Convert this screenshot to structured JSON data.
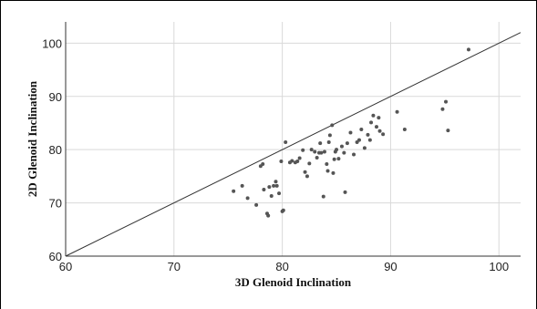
{
  "chart_data": {
    "type": "scatter",
    "title": "",
    "xlabel": "3D Glenoid Inclination",
    "ylabel": "2D Glenoid Inclination",
    "xlim": [
      60,
      102
    ],
    "ylim": [
      60,
      104
    ],
    "x_ticks": [
      60,
      70,
      80,
      90,
      100
    ],
    "y_ticks": [
      60,
      70,
      80,
      90,
      100
    ],
    "grid": true,
    "legend": "none",
    "reference_line": "y = x",
    "colors": {
      "points": "#555555",
      "grid": "#d9d9d9",
      "axis": "#333333",
      "reference_line": "#333333"
    },
    "series": [
      {
        "points": [
          [
            75.5,
            72.2
          ],
          [
            76.3,
            73.2
          ],
          [
            76.8,
            70.9
          ],
          [
            77.6,
            69.6
          ],
          [
            78.0,
            76.9
          ],
          [
            78.2,
            77.3
          ],
          [
            78.3,
            72.5
          ],
          [
            78.6,
            68.0
          ],
          [
            78.7,
            67.6
          ],
          [
            78.8,
            73.0
          ],
          [
            79.0,
            71.3
          ],
          [
            79.2,
            73.2
          ],
          [
            79.4,
            74.0
          ],
          [
            79.5,
            73.2
          ],
          [
            79.7,
            71.8
          ],
          [
            79.9,
            77.8
          ],
          [
            80.0,
            68.4
          ],
          [
            80.1,
            68.6
          ],
          [
            80.3,
            81.4
          ],
          [
            80.7,
            77.6
          ],
          [
            80.9,
            77.9
          ],
          [
            81.2,
            77.6
          ],
          [
            81.4,
            77.8
          ],
          [
            81.6,
            78.4
          ],
          [
            81.9,
            79.9
          ],
          [
            82.1,
            75.8
          ],
          [
            82.3,
            75.0
          ],
          [
            82.5,
            77.4
          ],
          [
            82.7,
            80.0
          ],
          [
            83.0,
            79.6
          ],
          [
            83.2,
            78.5
          ],
          [
            83.4,
            79.4
          ],
          [
            83.5,
            81.2
          ],
          [
            83.6,
            79.4
          ],
          [
            83.8,
            71.2
          ],
          [
            83.9,
            79.6
          ],
          [
            84.1,
            77.3
          ],
          [
            84.2,
            76.0
          ],
          [
            84.3,
            81.4
          ],
          [
            84.4,
            82.7
          ],
          [
            84.6,
            84.6
          ],
          [
            84.7,
            75.6
          ],
          [
            84.8,
            78.2
          ],
          [
            84.9,
            79.6
          ],
          [
            85.0,
            80.0
          ],
          [
            85.2,
            78.3
          ],
          [
            85.5,
            80.6
          ],
          [
            85.7,
            79.4
          ],
          [
            85.8,
            72.0
          ],
          [
            86.0,
            81.2
          ],
          [
            86.3,
            83.2
          ],
          [
            86.6,
            79.1
          ],
          [
            86.9,
            81.4
          ],
          [
            87.1,
            81.8
          ],
          [
            87.3,
            83.8
          ],
          [
            87.6,
            80.3
          ],
          [
            87.9,
            82.8
          ],
          [
            88.1,
            81.8
          ],
          [
            88.2,
            85.1
          ],
          [
            88.4,
            86.4
          ],
          [
            88.7,
            84.3
          ],
          [
            88.9,
            86.0
          ],
          [
            89.0,
            83.5
          ],
          [
            89.3,
            82.9
          ],
          [
            90.6,
            87.1
          ],
          [
            91.3,
            83.8
          ],
          [
            94.8,
            87.6
          ],
          [
            95.1,
            89.0
          ],
          [
            95.3,
            83.6
          ],
          [
            97.2,
            98.8
          ]
        ]
      }
    ]
  }
}
